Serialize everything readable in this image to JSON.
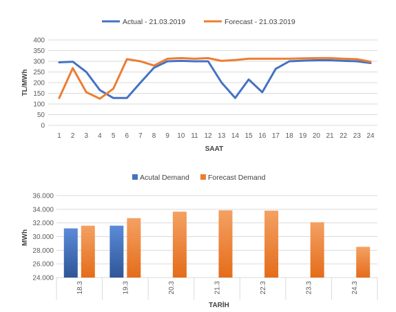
{
  "chart_data": [
    {
      "type": "line",
      "title": "",
      "xlabel": "SAAT",
      "ylabel": "TL/MWh",
      "x": [
        1,
        2,
        3,
        4,
        5,
        6,
        7,
        8,
        9,
        10,
        11,
        12,
        13,
        14,
        15,
        16,
        17,
        18,
        19,
        20,
        21,
        22,
        23,
        24
      ],
      "ylim": [
        0,
        400
      ],
      "yticks": [
        0,
        50,
        100,
        150,
        200,
        250,
        300,
        350,
        400
      ],
      "grid": true,
      "legend": "top",
      "series": [
        {
          "name": "Actual - 21.03.2019",
          "color": "#4472C4",
          "values": [
            295,
            298,
            250,
            165,
            128,
            128,
            200,
            270,
            300,
            302,
            300,
            300,
            200,
            128,
            215,
            155,
            265,
            300,
            303,
            305,
            305,
            302,
            300,
            292
          ]
        },
        {
          "name": "Forecast - 21.03.2019",
          "color": "#ED7D31",
          "values": [
            128,
            268,
            155,
            125,
            172,
            310,
            300,
            280,
            312,
            315,
            312,
            315,
            302,
            306,
            312,
            312,
            312,
            312,
            314,
            315,
            315,
            312,
            310,
            298
          ]
        }
      ]
    },
    {
      "type": "bar",
      "title": "",
      "xlabel": "TARİH",
      "ylabel": "MWh",
      "categories": [
        "18.3",
        "19.3",
        "20.3",
        "21.3",
        "22.3",
        "23.3",
        "24.3"
      ],
      "ylim": [
        24000,
        36000
      ],
      "yticks": [
        "24.000",
        "26.000",
        "28.000",
        "30.000",
        "32.000",
        "34.000",
        "36.000"
      ],
      "grid": true,
      "legend": "top",
      "series": [
        {
          "name": "Acutal Demand",
          "color": "#4472C4",
          "values": [
            31200,
            31600,
            null,
            null,
            null,
            null,
            null
          ]
        },
        {
          "name": "Forecast Demand",
          "color": "#ED7D31",
          "values": [
            31600,
            32700,
            33650,
            33850,
            33800,
            32100,
            28500
          ]
        }
      ]
    }
  ]
}
